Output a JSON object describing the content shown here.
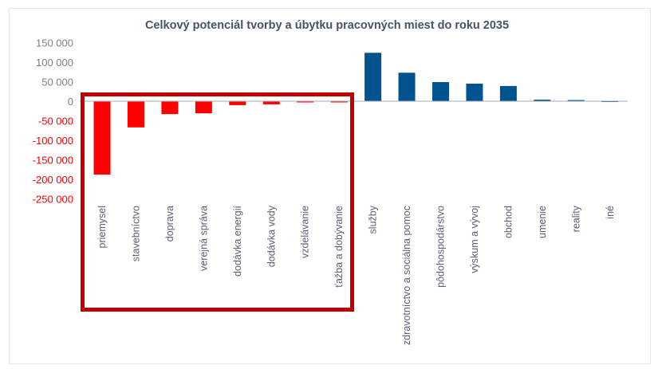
{
  "chart_data": {
    "type": "bar",
    "title": "Celkový potenciál tvorby a úbytku pracovných miest do roku 2035",
    "xlabel": "",
    "ylabel": "",
    "ylim": [
      -250000,
      150000
    ],
    "yticks": [
      "150 000",
      "100 000",
      "50 000",
      "0",
      "-50 000",
      "-100 000",
      "-150 000",
      "-200 000",
      "-250 000"
    ],
    "ytick_values": [
      150000,
      100000,
      50000,
      0,
      -50000,
      -100000,
      -150000,
      -200000,
      -250000
    ],
    "categories": [
      "priemysel",
      "stavebníctvo",
      "doprava",
      "verejná správa",
      "dodávka energií",
      "dodávka vody",
      "vzdelávanie",
      "ťažba a dobývanie",
      "služby",
      "zdravotníctvo a sociálna pomoc",
      "pôdohospodárstvo",
      "výskum a vývoj",
      "obchod",
      "umenie",
      "reality",
      "iné"
    ],
    "values": [
      -188000,
      -67000,
      -33000,
      -31000,
      -10000,
      -8000,
      -3000,
      -3000,
      124000,
      73000,
      49000,
      45000,
      39000,
      4000,
      3000,
      1000
    ],
    "grid": false,
    "legend": "none",
    "highlight": {
      "categories": [
        "priemysel",
        "stavebníctvo",
        "doprava",
        "verejná správa",
        "dodávka energií",
        "dodávka vody",
        "vzdelávanie",
        "ťažba a dobývanie"
      ],
      "style": "red-box"
    },
    "colors": {
      "negative": "#ff0000",
      "positive": "#00538f",
      "highlight_box": "#c00000",
      "positive_tick": "#808080",
      "negative_tick": "#ff0000",
      "title": "#44546a"
    }
  }
}
